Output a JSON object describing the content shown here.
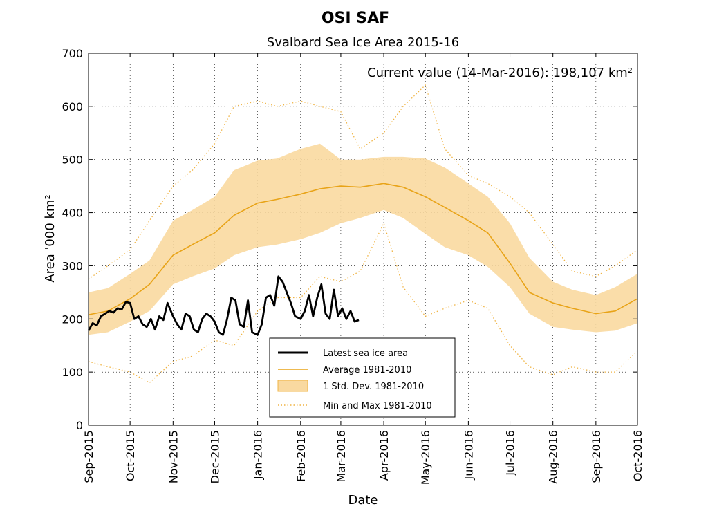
{
  "chart_data": {
    "type": "line",
    "title": "OSI SAF",
    "subtitle": "Svalbard Sea Ice Area 2015-16",
    "annotation": "Current value (14-Mar-2016): 198,107 km²",
    "xlabel": "Date",
    "ylabel": "Area '000 km²",
    "ylim": [
      0,
      700
    ],
    "yticks": [
      0,
      100,
      200,
      300,
      400,
      500,
      600,
      700
    ],
    "xlim": [
      "2015-09-01",
      "2016-10-01"
    ],
    "xticks": [
      {
        "date": "2015-09-01",
        "label": "Sep-2015"
      },
      {
        "date": "2015-10-01",
        "label": "Oct-2015"
      },
      {
        "date": "2015-11-01",
        "label": "Nov-2015"
      },
      {
        "date": "2015-12-01",
        "label": "Dec-2015"
      },
      {
        "date": "2016-01-01",
        "label": "Jan-2016"
      },
      {
        "date": "2016-02-01",
        "label": "Feb-2016"
      },
      {
        "date": "2016-03-01",
        "label": "Mar-2016"
      },
      {
        "date": "2016-04-01",
        "label": "Apr-2016"
      },
      {
        "date": "2016-05-01",
        "label": "May-2016"
      },
      {
        "date": "2016-06-01",
        "label": "Jun-2016"
      },
      {
        "date": "2016-07-01",
        "label": "Jul-2016"
      },
      {
        "date": "2016-08-01",
        "label": "Aug-2016"
      },
      {
        "date": "2016-09-01",
        "label": "Sep-2016"
      },
      {
        "date": "2016-10-01",
        "label": "Oct-2016"
      }
    ],
    "grid": true,
    "legend_position": "lower-center",
    "colors": {
      "latest": "#000000",
      "average": "#e8a317",
      "band": "#f9d9a0",
      "minmax": "#f0b444"
    },
    "series": [
      {
        "name": "Latest sea ice area",
        "style": "solid-black",
        "x": [
          "2015-09-01",
          "2015-09-04",
          "2015-09-07",
          "2015-09-10",
          "2015-09-13",
          "2015-09-16",
          "2015-09-19",
          "2015-09-22",
          "2015-09-25",
          "2015-09-28",
          "2015-10-01",
          "2015-10-04",
          "2015-10-07",
          "2015-10-10",
          "2015-10-13",
          "2015-10-16",
          "2015-10-19",
          "2015-10-22",
          "2015-10-25",
          "2015-10-28",
          "2015-11-01",
          "2015-11-04",
          "2015-11-07",
          "2015-11-10",
          "2015-11-13",
          "2015-11-16",
          "2015-11-19",
          "2015-11-22",
          "2015-11-25",
          "2015-11-28",
          "2015-12-01",
          "2015-12-04",
          "2015-12-07",
          "2015-12-10",
          "2015-12-13",
          "2015-12-16",
          "2015-12-19",
          "2015-12-22",
          "2015-12-25",
          "2015-12-28",
          "2016-01-01",
          "2016-01-04",
          "2016-01-07",
          "2016-01-10",
          "2016-01-13",
          "2016-01-16",
          "2016-01-19",
          "2016-01-22",
          "2016-01-25",
          "2016-01-28",
          "2016-02-01",
          "2016-02-04",
          "2016-02-07",
          "2016-02-10",
          "2016-02-13",
          "2016-02-16",
          "2016-02-19",
          "2016-02-22",
          "2016-02-25",
          "2016-02-28",
          "2016-03-02",
          "2016-03-05",
          "2016-03-08",
          "2016-03-11",
          "2016-03-14"
        ],
        "values": [
          178,
          192,
          188,
          205,
          210,
          215,
          212,
          220,
          218,
          232,
          230,
          200,
          205,
          190,
          185,
          200,
          180,
          205,
          198,
          230,
          205,
          190,
          180,
          210,
          205,
          180,
          175,
          200,
          210,
          205,
          195,
          175,
          170,
          200,
          240,
          235,
          190,
          185,
          235,
          175,
          170,
          190,
          240,
          245,
          225,
          280,
          270,
          250,
          230,
          205,
          200,
          215,
          245,
          205,
          240,
          265,
          210,
          200,
          255,
          205,
          220,
          200,
          215,
          195,
          198
        ]
      },
      {
        "name": "Average 1981-2010",
        "style": "solid-orange",
        "x": [
          "2015-09-01",
          "2015-09-15",
          "2015-10-01",
          "2015-10-15",
          "2015-11-01",
          "2015-11-15",
          "2015-12-01",
          "2015-12-15",
          "2016-01-01",
          "2016-01-15",
          "2016-02-01",
          "2016-02-15",
          "2016-03-01",
          "2016-03-15",
          "2016-04-01",
          "2016-04-15",
          "2016-05-01",
          "2016-05-15",
          "2016-06-01",
          "2016-06-15",
          "2016-07-01",
          "2016-07-15",
          "2016-08-01",
          "2016-08-15",
          "2016-09-01",
          "2016-09-15",
          "2016-10-01"
        ],
        "values": [
          208,
          215,
          238,
          265,
          320,
          340,
          362,
          395,
          418,
          425,
          435,
          445,
          450,
          448,
          455,
          448,
          430,
          410,
          385,
          362,
          305,
          250,
          230,
          220,
          210,
          215,
          238
        ]
      },
      {
        "name": "1 Std. Dev. 1981-2010",
        "style": "band",
        "x": [
          "2015-09-01",
          "2015-09-15",
          "2015-10-01",
          "2015-10-15",
          "2015-11-01",
          "2015-11-15",
          "2015-12-01",
          "2015-12-15",
          "2016-01-01",
          "2016-01-15",
          "2016-02-01",
          "2016-02-15",
          "2016-03-01",
          "2016-03-15",
          "2016-04-01",
          "2016-04-15",
          "2016-05-01",
          "2016-05-15",
          "2016-06-01",
          "2016-06-15",
          "2016-07-01",
          "2016-07-15",
          "2016-08-01",
          "2016-08-15",
          "2016-09-01",
          "2016-09-15",
          "2016-10-01"
        ],
        "upper": [
          250,
          258,
          285,
          310,
          385,
          405,
          430,
          480,
          498,
          502,
          520,
          530,
          500,
          500,
          505,
          505,
          502,
          485,
          455,
          430,
          380,
          315,
          270,
          255,
          245,
          260,
          285
        ],
        "lower": [
          170,
          175,
          195,
          215,
          265,
          280,
          295,
          320,
          335,
          340,
          350,
          362,
          380,
          390,
          405,
          390,
          360,
          335,
          320,
          298,
          260,
          210,
          185,
          180,
          175,
          178,
          192
        ]
      },
      {
        "name": "Min and Max 1981-2010",
        "style": "dotted",
        "x": [
          "2015-09-01",
          "2015-09-15",
          "2015-10-01",
          "2015-10-15",
          "2015-11-01",
          "2015-11-15",
          "2015-12-01",
          "2015-12-15",
          "2016-01-01",
          "2016-01-15",
          "2016-02-01",
          "2016-02-15",
          "2016-03-01",
          "2016-03-15",
          "2016-04-01",
          "2016-04-15",
          "2016-05-01",
          "2016-05-15",
          "2016-06-01",
          "2016-06-15",
          "2016-07-01",
          "2016-07-15",
          "2016-08-01",
          "2016-08-15",
          "2016-09-01",
          "2016-09-15",
          "2016-10-01"
        ],
        "upper": [
          275,
          300,
          330,
          385,
          450,
          480,
          530,
          600,
          610,
          600,
          610,
          600,
          590,
          520,
          550,
          600,
          640,
          520,
          470,
          455,
          430,
          400,
          340,
          290,
          280,
          300,
          330
        ],
        "lower": [
          120,
          110,
          100,
          80,
          120,
          130,
          160,
          150,
          215,
          240,
          240,
          280,
          270,
          290,
          380,
          260,
          205,
          220,
          235,
          220,
          150,
          110,
          95,
          110,
          100,
          100,
          140
        ]
      }
    ]
  }
}
